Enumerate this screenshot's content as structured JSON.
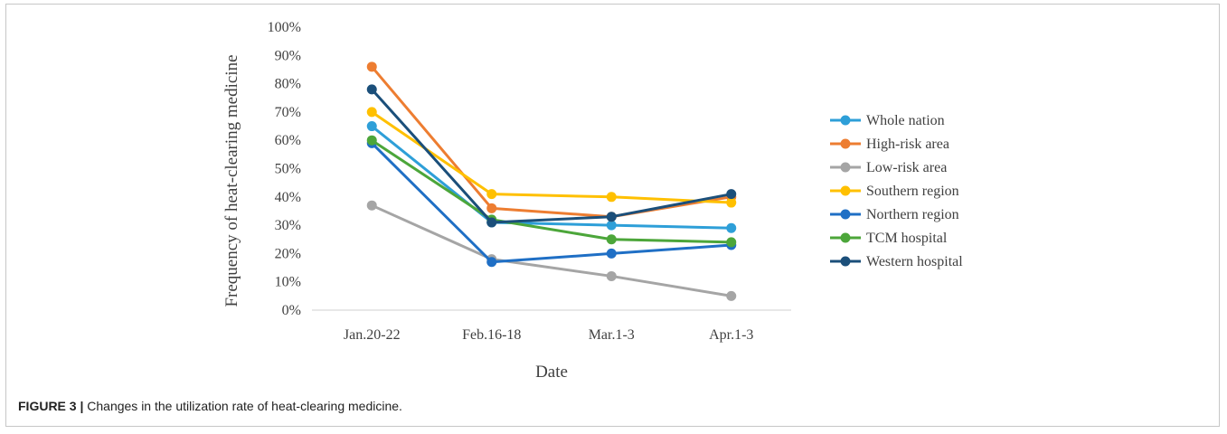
{
  "caption": {
    "label": "FIGURE 3 |",
    "text": "Changes in the utilization rate of heat-clearing medicine."
  },
  "chart_data": {
    "type": "line",
    "title": "",
    "xlabel": "Date",
    "ylabel": "Frequency of heat-clearing medicine",
    "categories": [
      "Jan.20-22",
      "Feb.16-18",
      "Mar.1-3",
      "Apr.1-3"
    ],
    "ylim": [
      0,
      100
    ],
    "yticks": [
      "0%",
      "10%",
      "20%",
      "30%",
      "40%",
      "50%",
      "60%",
      "70%",
      "80%",
      "90%",
      "100%"
    ],
    "grid": false,
    "legend": "right",
    "series": [
      {
        "name": "Whole nation",
        "color": "#2e9fd8",
        "values": [
          65,
          31,
          30,
          29
        ]
      },
      {
        "name": "High-risk area",
        "color": "#ed7d31",
        "values": [
          86,
          36,
          33,
          40
        ]
      },
      {
        "name": "Low-risk area",
        "color": "#a5a5a5",
        "values": [
          37,
          18,
          12,
          5
        ]
      },
      {
        "name": "Southern region",
        "color": "#ffc000",
        "values": [
          70,
          41,
          40,
          38
        ]
      },
      {
        "name": "Northern region",
        "color": "#1f6fc5",
        "values": [
          59,
          17,
          20,
          23
        ]
      },
      {
        "name": "TCM hospital",
        "color": "#4ca63a",
        "values": [
          60,
          32,
          25,
          24
        ]
      },
      {
        "name": "Western hospital",
        "color": "#1b4f7a",
        "values": [
          78,
          31,
          33,
          41
        ]
      }
    ]
  }
}
